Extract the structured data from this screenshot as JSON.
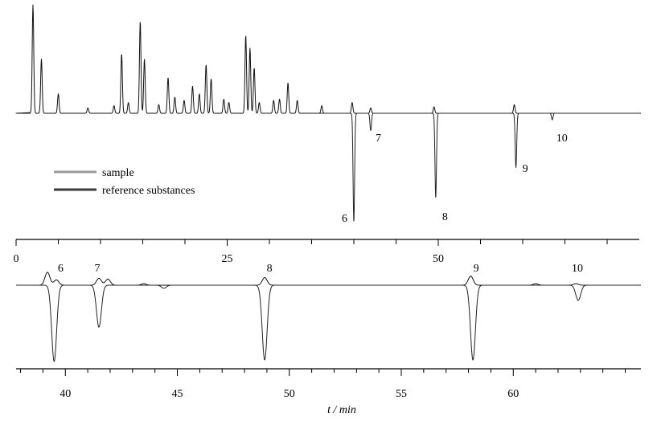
{
  "chart_data": [
    {
      "type": "line",
      "legend": [
        {
          "name": "sample",
          "color": "#9a9a9a"
        },
        {
          "name": "reference substances",
          "color": "#3a3a3a"
        }
      ],
      "legend_position": "left",
      "peak_labels": [
        "6",
        "7",
        "8",
        "9",
        "10"
      ],
      "xlim": [
        0,
        74
      ],
      "x_ticks": [
        0,
        25,
        50
      ],
      "x_minor_step": 5,
      "sample_peaks": [
        {
          "t": 2.0,
          "h": 1.0
        },
        {
          "t": 3.0,
          "h": 0.5
        },
        {
          "t": 5.0,
          "h": 0.18
        },
        {
          "t": 8.5,
          "h": 0.05
        },
        {
          "t": 11.6,
          "h": 0.07
        },
        {
          "t": 12.5,
          "h": 0.55
        },
        {
          "t": 13.3,
          "h": 0.1
        },
        {
          "t": 14.7,
          "h": 0.85
        },
        {
          "t": 15.2,
          "h": 0.5
        },
        {
          "t": 16.9,
          "h": 0.08
        },
        {
          "t": 18.0,
          "h": 0.33
        },
        {
          "t": 18.8,
          "h": 0.15
        },
        {
          "t": 19.9,
          "h": 0.12
        },
        {
          "t": 20.9,
          "h": 0.25
        },
        {
          "t": 21.7,
          "h": 0.18
        },
        {
          "t": 22.5,
          "h": 0.45
        },
        {
          "t": 23.1,
          "h": 0.32
        },
        {
          "t": 24.6,
          "h": 0.13
        },
        {
          "t": 25.2,
          "h": 0.1
        },
        {
          "t": 27.2,
          "h": 0.72
        },
        {
          "t": 27.7,
          "h": 0.6
        },
        {
          "t": 28.2,
          "h": 0.42
        },
        {
          "t": 28.8,
          "h": 0.1
        },
        {
          "t": 30.5,
          "h": 0.12
        },
        {
          "t": 31.2,
          "h": 0.13
        },
        {
          "t": 32.2,
          "h": 0.28
        },
        {
          "t": 33.3,
          "h": 0.12
        },
        {
          "t": 36.2,
          "h": 0.07
        },
        {
          "t": 39.8,
          "h": 0.1
        },
        {
          "t": 42.0,
          "h": 0.05
        },
        {
          "t": 49.5,
          "h": 0.06
        },
        {
          "t": 59.0,
          "h": 0.08
        }
      ],
      "reference_peaks": [
        {
          "label": "6",
          "t": 40.0,
          "h": 1.0
        },
        {
          "label": "7",
          "t": 42.0,
          "h": 0.16
        },
        {
          "label": "8",
          "t": 49.7,
          "h": 0.78
        },
        {
          "label": "9",
          "t": 59.2,
          "h": 0.5
        },
        {
          "label": "10",
          "t": 63.5,
          "h": 0.06
        }
      ]
    },
    {
      "type": "line",
      "xlabel": "t / min",
      "xlim": [
        37.8,
        65.7
      ],
      "x_ticks": [
        40,
        45,
        50,
        55,
        60
      ],
      "x_minor_step": 1,
      "peak_labels": [
        "6",
        "7",
        "8",
        "9",
        "10"
      ],
      "sample_peaks": [
        {
          "t": 39.2,
          "h": 0.17
        },
        {
          "t": 39.6,
          "h": 0.07
        },
        {
          "t": 41.5,
          "h": 0.09
        },
        {
          "t": 41.9,
          "h": 0.08
        },
        {
          "t": 43.5,
          "h": 0.02
        },
        {
          "t": 48.9,
          "h": 0.1
        },
        {
          "t": 58.1,
          "h": 0.12
        },
        {
          "t": 61.0,
          "h": 0.02
        },
        {
          "t": 62.8,
          "h": 0.02
        }
      ],
      "reference_peaks": [
        {
          "label": "6",
          "t": 39.5,
          "h": 1.0
        },
        {
          "label": "7",
          "t": 41.5,
          "h": 0.55
        },
        {
          "label": "8",
          "t": 48.9,
          "h": 0.98
        },
        {
          "label": "9",
          "t": 58.2,
          "h": 0.98
        },
        {
          "label": "10",
          "t": 62.9,
          "h": 0.2
        },
        {
          "label": "",
          "t": 44.4,
          "h": 0.04
        }
      ]
    }
  ]
}
